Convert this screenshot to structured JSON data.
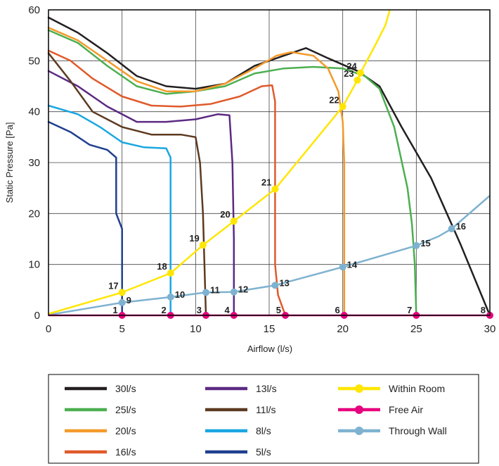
{
  "chart_data": {
    "type": "line",
    "title": "",
    "xlabel": "Airflow (l/s)",
    "ylabel": "Static Pressure [Pa]",
    "xlim": [
      0,
      30
    ],
    "ylim": [
      0,
      60
    ],
    "xticks": [
      "0",
      "5",
      "10",
      "15",
      "20",
      "25",
      "30"
    ],
    "yticks": [
      "0",
      "10",
      "20",
      "30",
      "40",
      "50",
      "60"
    ],
    "grid": true,
    "legend_position": "bottom",
    "series": [
      {
        "name": "30l/s",
        "color": "#231f20",
        "points": [
          [
            0,
            58.5
          ],
          [
            2,
            55.5
          ],
          [
            4,
            51.5
          ],
          [
            6,
            47
          ],
          [
            8,
            45
          ],
          [
            10,
            44.5
          ],
          [
            12,
            45.5
          ],
          [
            14,
            49
          ],
          [
            16,
            51
          ],
          [
            17.5,
            52.5
          ],
          [
            19,
            50.5
          ],
          [
            21,
            48
          ],
          [
            22.5,
            45
          ],
          [
            24,
            37
          ],
          [
            26,
            27
          ],
          [
            28,
            14
          ],
          [
            30,
            0
          ]
        ]
      },
      {
        "name": "25l/s",
        "color": "#4caf50",
        "points": [
          [
            0,
            56
          ],
          [
            2,
            53.5
          ],
          [
            4,
            49
          ],
          [
            6,
            45
          ],
          [
            8,
            43.5
          ],
          [
            10,
            44
          ],
          [
            12,
            45
          ],
          [
            14,
            47.5
          ],
          [
            16,
            48.5
          ],
          [
            18,
            48.8
          ],
          [
            20,
            48.5
          ],
          [
            21.5,
            47
          ],
          [
            22.5,
            44.5
          ],
          [
            23.5,
            37
          ],
          [
            24.4,
            25
          ],
          [
            24.7,
            18
          ],
          [
            24.9,
            10
          ],
          [
            25,
            0
          ]
        ]
      },
      {
        "name": "20l/s",
        "color": "#f39a2b",
        "points": [
          [
            0,
            56.5
          ],
          [
            2,
            54
          ],
          [
            4,
            50
          ],
          [
            6,
            46
          ],
          [
            8,
            44
          ],
          [
            10,
            44
          ],
          [
            12,
            45.5
          ],
          [
            14,
            48.5
          ],
          [
            15.5,
            51
          ],
          [
            16.5,
            51.7
          ],
          [
            18,
            51
          ],
          [
            19,
            48.5
          ],
          [
            19.7,
            44
          ],
          [
            20,
            38
          ],
          [
            20.1,
            30
          ],
          [
            20.1,
            15
          ],
          [
            20.1,
            0
          ]
        ]
      },
      {
        "name": "16l/s",
        "color": "#e05a2b",
        "points": [
          [
            0,
            52
          ],
          [
            1.5,
            50
          ],
          [
            3,
            46.5
          ],
          [
            5,
            43
          ],
          [
            7,
            41.2
          ],
          [
            9,
            41
          ],
          [
            11,
            41.5
          ],
          [
            13,
            43
          ],
          [
            14.5,
            45
          ],
          [
            15.2,
            45.2
          ],
          [
            15.4,
            42
          ],
          [
            15.4,
            35
          ],
          [
            15.4,
            10
          ],
          [
            15.6,
            4
          ],
          [
            16.1,
            0
          ]
        ]
      },
      {
        "name": "13l/s",
        "color": "#5b2a83",
        "points": [
          [
            0,
            48
          ],
          [
            2,
            45
          ],
          [
            4,
            41
          ],
          [
            6,
            38
          ],
          [
            8,
            38
          ],
          [
            10,
            38.5
          ],
          [
            11.5,
            39.5
          ],
          [
            12.3,
            39.3
          ],
          [
            12.5,
            30
          ],
          [
            12.6,
            15
          ],
          [
            12.6,
            5
          ],
          [
            12.6,
            0
          ]
        ]
      },
      {
        "name": "11l/s",
        "color": "#5c3a21",
        "points": [
          [
            0,
            51.5
          ],
          [
            1.5,
            46
          ],
          [
            3,
            40
          ],
          [
            5,
            37
          ],
          [
            7,
            35.5
          ],
          [
            9,
            35.5
          ],
          [
            10,
            35
          ],
          [
            10.3,
            30
          ],
          [
            10.5,
            20
          ],
          [
            10.6,
            10
          ],
          [
            10.7,
            0
          ]
        ]
      },
      {
        "name": "8l/s",
        "color": "#1aa7e0",
        "points": [
          [
            0,
            41.2
          ],
          [
            2,
            39.5
          ],
          [
            3.5,
            37
          ],
          [
            5,
            34
          ],
          [
            6.5,
            33
          ],
          [
            8,
            32.8
          ],
          [
            8.3,
            31
          ],
          [
            8.3,
            20
          ],
          [
            8.3,
            10
          ],
          [
            8.3,
            0
          ]
        ]
      },
      {
        "name": "5l/s",
        "color": "#1f3f8f",
        "points": [
          [
            0,
            38
          ],
          [
            1.5,
            36
          ],
          [
            2.8,
            33.5
          ],
          [
            4,
            32.5
          ],
          [
            4.6,
            31
          ],
          [
            4.6,
            20
          ],
          [
            5,
            17
          ],
          [
            5,
            10
          ],
          [
            5,
            0
          ]
        ]
      }
    ],
    "marker_series": [
      {
        "name": "Within Room",
        "color": "#ffe600",
        "points": [
          [
            0,
            0.3
          ],
          [
            5,
            4.5
          ],
          [
            8.3,
            8.3
          ],
          [
            10.5,
            13.8
          ],
          [
            12.6,
            18.5
          ],
          [
            15.4,
            24.8
          ],
          [
            20,
            41
          ],
          [
            21,
            46.2
          ],
          [
            21.2,
            47.6
          ],
          [
            22.2,
            53
          ],
          [
            22.9,
            57
          ],
          [
            23.2,
            60
          ]
        ],
        "marked": [
          [
            5,
            4.5,
            "17"
          ],
          [
            8.3,
            8.3,
            "18"
          ],
          [
            10.5,
            13.8,
            "19"
          ],
          [
            12.6,
            18.5,
            "20"
          ],
          [
            15.4,
            24.8,
            "21"
          ],
          [
            20,
            41,
            "22"
          ],
          [
            21,
            46.2,
            "23"
          ],
          [
            21.2,
            47.6,
            "24"
          ]
        ]
      },
      {
        "name": "Free Air",
        "color": "#e6007e",
        "points": [
          [
            0,
            0
          ],
          [
            30,
            0
          ]
        ],
        "marked": [
          [
            5,
            0,
            "1"
          ],
          [
            8.3,
            0,
            "2"
          ],
          [
            10.7,
            0,
            "3"
          ],
          [
            12.6,
            0,
            "4"
          ],
          [
            16.1,
            0,
            "5"
          ],
          [
            20.1,
            0,
            "6"
          ],
          [
            25,
            0,
            "7"
          ],
          [
            30,
            0,
            "8"
          ]
        ]
      },
      {
        "name": "Through Wall",
        "color": "#7fb2d0",
        "points": [
          [
            0,
            0.1
          ],
          [
            5,
            2.5
          ],
          [
            8.3,
            3.6
          ],
          [
            10.7,
            4.5
          ],
          [
            12.6,
            4.6
          ],
          [
            15.4,
            5.9
          ],
          [
            20,
            9.5
          ],
          [
            25,
            13.7
          ],
          [
            26.5,
            15.5
          ],
          [
            27.4,
            17
          ],
          [
            30,
            23.5
          ]
        ],
        "marked": [
          [
            5,
            2.5,
            "9"
          ],
          [
            8.3,
            3.6,
            "10"
          ],
          [
            10.7,
            4.5,
            "11"
          ],
          [
            12.6,
            4.6,
            "12"
          ],
          [
            15.4,
            5.9,
            "13"
          ],
          [
            20,
            9.5,
            "14"
          ],
          [
            25,
            13.7,
            "15"
          ],
          [
            27.4,
            17,
            "16"
          ]
        ]
      }
    ]
  }
}
